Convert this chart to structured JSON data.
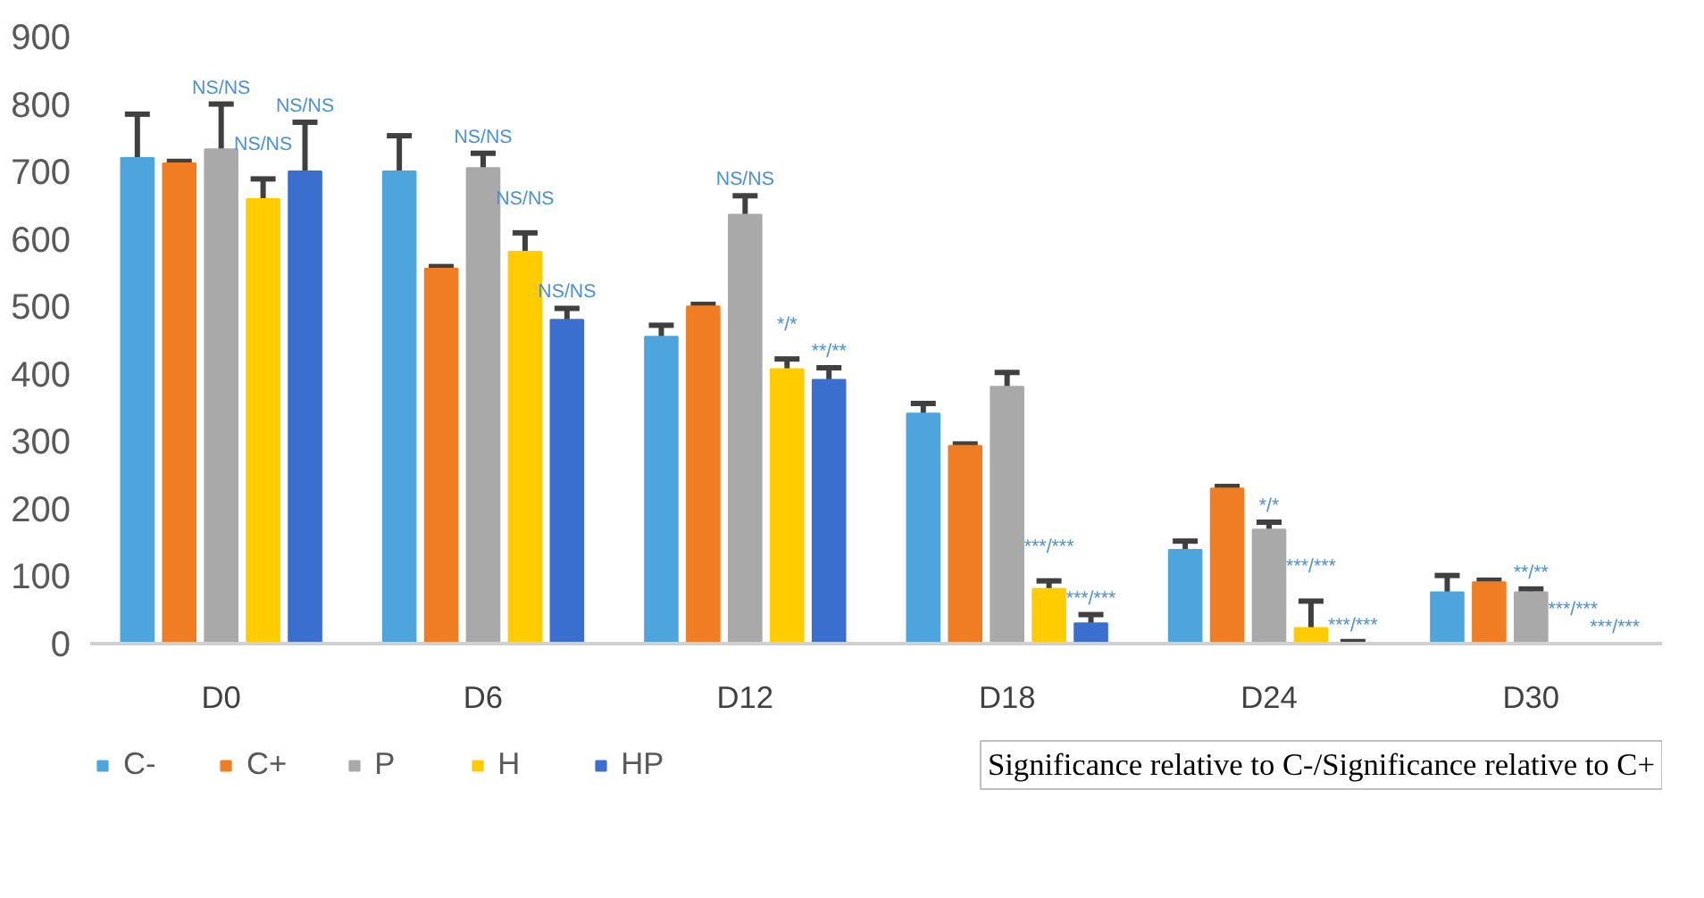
{
  "chart_data": {
    "type": "bar",
    "categories": [
      "D0",
      "D6",
      "D12",
      "D18",
      "D24",
      "D30"
    ],
    "ylim": [
      0,
      900
    ],
    "yticks": [
      0,
      100,
      200,
      300,
      400,
      500,
      600,
      700,
      800,
      900
    ],
    "grid": false,
    "legend": "bottom left",
    "series": [
      {
        "name": "C-",
        "color": "#4ea5de",
        "values": [
          720,
          700,
          455,
          341,
          139,
          76
        ],
        "errors": [
          [
            720,
            785
          ],
          [
            700,
            753
          ],
          [
            455,
            472
          ],
          [
            341,
            356
          ],
          [
            139,
            152
          ],
          [
            76,
            101
          ]
        ]
      },
      {
        "name": "C+",
        "color": "#f07d23",
        "values": [
          712,
          556,
          500,
          293,
          230,
          91
        ],
        "errors": [
          [
            712,
            715
          ],
          [
            556,
            559
          ],
          [
            500,
            503
          ],
          [
            293,
            296
          ],
          [
            230,
            233
          ],
          [
            91,
            94
          ]
        ]
      },
      {
        "name": "P",
        "color": "#a9a9a9",
        "values": [
          733,
          705,
          636,
          381,
          169,
          76
        ],
        "errors": [
          [
            733,
            800
          ],
          [
            705,
            727
          ],
          [
            636,
            664
          ],
          [
            381,
            402
          ],
          [
            169,
            180
          ],
          [
            76,
            81
          ]
        ],
        "value_labels": [
          "NS/NS",
          "NS/NS",
          "NS/NS",
          null,
          "*/*",
          "**/**"
        ]
      },
      {
        "name": "H",
        "color": "#ffcc00",
        "values": [
          659,
          581,
          407,
          81,
          23,
          0
        ],
        "errors": [
          [
            659,
            689
          ],
          [
            581,
            609
          ],
          [
            407,
            422
          ],
          [
            81,
            93
          ],
          [
            23,
            63
          ],
          null
        ],
        "value_labels": [
          "NS/NS",
          "NS/NS",
          "*/*",
          "***/***",
          "***/***",
          "***/***"
        ]
      },
      {
        "name": "HP",
        "color": "#3a6fd0",
        "values": [
          700,
          480,
          391,
          30,
          1,
          0
        ],
        "errors": [
          [
            700,
            773
          ],
          [
            480,
            497
          ],
          [
            391,
            409
          ],
          [
            30,
            43
          ],
          [
            1,
            3
          ],
          null
        ],
        "value_labels": [
          "NS/NS",
          "NS/NS",
          "**/**",
          "***/***",
          "***/***",
          "***/***"
        ]
      }
    ],
    "annotations": [
      "Significance relative to C-/Significance relative to C+"
    ]
  }
}
